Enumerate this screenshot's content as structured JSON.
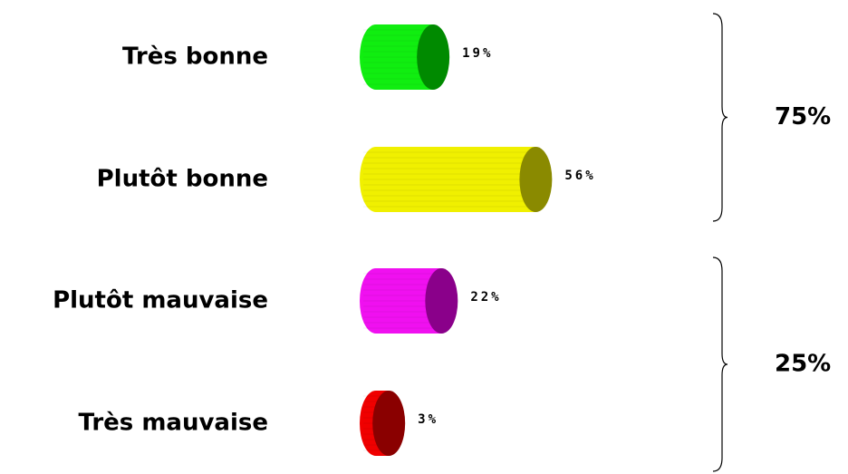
{
  "chart_data": {
    "type": "cylinder-bar",
    "categories": [
      "Très bonne",
      "Plutôt bonne",
      "Plutôt mauvaise",
      "Très mauvaise"
    ],
    "values": [
      19,
      56,
      22,
      3
    ],
    "value_labels": [
      "19%",
      "56%",
      "22%",
      "3%"
    ],
    "colors": [
      "#10ee10",
      "#f0f000",
      "#f010f0",
      "#f00000"
    ],
    "cap_colors": [
      "#008a00",
      "#8a8a00",
      "#8a008a",
      "#8a0000"
    ],
    "annotations": [
      "75%",
      "25%"
    ]
  }
}
